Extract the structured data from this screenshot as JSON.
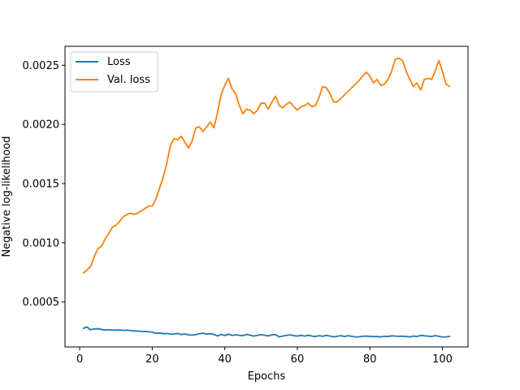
{
  "chart_data": {
    "type": "line",
    "title": "",
    "xlabel": "Epochs",
    "ylabel": "Negative log-likelihood",
    "xlim": [
      -4.05,
      107.05
    ],
    "ylim": [
      0.00012,
      0.00266
    ],
    "xticks": [
      0,
      20,
      40,
      60,
      80,
      100
    ],
    "xtick_labels": [
      "0",
      "20",
      "40",
      "60",
      "80",
      "100"
    ],
    "yticks": [
      0.0005,
      0.001,
      0.0015,
      0.002,
      0.0025
    ],
    "ytick_labels": [
      "0.0005",
      "0.0010",
      "0.0015",
      "0.0020",
      "0.0025"
    ],
    "grid": false,
    "legend": "top-left",
    "series": [
      {
        "name": "Loss",
        "color": "#1f77b4",
        "x": [
          1,
          2,
          3,
          4,
          5,
          6,
          7,
          8,
          9,
          10,
          11,
          12,
          13,
          14,
          15,
          16,
          17,
          18,
          19,
          20,
          21,
          22,
          23,
          24,
          25,
          26,
          27,
          28,
          29,
          30,
          31,
          32,
          33,
          34,
          35,
          36,
          37,
          38,
          39,
          40,
          41,
          42,
          43,
          44,
          45,
          46,
          47,
          48,
          49,
          50,
          51,
          52,
          53,
          54,
          55,
          56,
          57,
          58,
          59,
          60,
          61,
          62,
          63,
          64,
          65,
          66,
          67,
          68,
          69,
          70,
          71,
          72,
          73,
          74,
          75,
          76,
          77,
          78,
          79,
          80,
          81,
          82,
          83,
          84,
          85,
          86,
          87,
          88,
          89,
          90,
          91,
          92,
          93,
          94,
          95,
          96,
          97,
          98,
          99,
          100,
          101,
          102
        ],
        "y": [
          0.000277,
          0.000288,
          0.000265,
          0.000272,
          0.000274,
          0.000268,
          0.000262,
          0.000266,
          0.000263,
          0.000262,
          0.000265,
          0.00026,
          0.000262,
          0.000258,
          0.000255,
          0.000254,
          0.000252,
          0.000251,
          0.000248,
          0.000245,
          0.000235,
          0.000238,
          0.000232,
          0.000234,
          0.000228,
          0.00023,
          0.000234,
          0.000225,
          0.00023,
          0.000222,
          0.00022,
          0.000224,
          0.000232,
          0.000236,
          0.000228,
          0.000232,
          0.000226,
          0.000212,
          0.000226,
          0.000216,
          0.000228,
          0.000218,
          0.000222,
          0.000218,
          0.000215,
          0.000226,
          0.000219,
          0.000212,
          0.000218,
          0.000225,
          0.000218,
          0.000213,
          0.000222,
          0.000225,
          0.000205,
          0.000212,
          0.000218,
          0.000222,
          0.000215,
          0.000212,
          0.000218,
          0.000212,
          0.000219,
          0.000212,
          0.000208,
          0.000215,
          0.00021,
          0.000218,
          0.000212,
          0.000205,
          0.00021,
          0.000215,
          0.000208,
          0.000215,
          0.000209,
          0.000205,
          0.000205,
          0.00021,
          0.000212,
          0.000209,
          0.000208,
          0.000207,
          0.000205,
          0.00021,
          0.000208,
          0.000214,
          0.000212,
          0.00021,
          0.000211,
          0.000208,
          0.000205,
          0.000212,
          0.000208,
          0.000218,
          0.000214,
          0.000212,
          0.000208,
          0.000215,
          0.00021,
          0.000204,
          0.000205,
          0.000209
        ]
      },
      {
        "name": "Val. loss",
        "color": "#ff7f0e",
        "x": [
          1,
          2,
          3,
          4,
          5,
          6,
          7,
          8,
          9,
          10,
          11,
          12,
          13,
          14,
          15,
          16,
          17,
          18,
          19,
          20,
          21,
          22,
          23,
          24,
          25,
          26,
          27,
          28,
          29,
          30,
          31,
          32,
          33,
          34,
          35,
          36,
          37,
          38,
          39,
          40,
          41,
          42,
          43,
          44,
          45,
          46,
          47,
          48,
          49,
          50,
          51,
          52,
          53,
          54,
          55,
          56,
          57,
          58,
          59,
          60,
          61,
          62,
          63,
          64,
          65,
          66,
          67,
          68,
          69,
          70,
          71,
          72,
          73,
          74,
          75,
          76,
          77,
          78,
          79,
          80,
          81,
          82,
          83,
          84,
          85,
          86,
          87,
          88,
          89,
          90,
          91,
          92,
          93,
          94,
          95,
          96,
          97,
          98,
          99,
          100,
          101,
          102
        ],
        "y": [
          0.000745,
          0.00077,
          0.0008,
          0.00088,
          0.00095,
          0.00097,
          0.00103,
          0.00108,
          0.00113,
          0.00115,
          0.00118,
          0.00122,
          0.00124,
          0.00125,
          0.00124,
          0.00125,
          0.00127,
          0.00129,
          0.00131,
          0.00131,
          0.00137,
          0.00146,
          0.00155,
          0.00167,
          0.00182,
          0.00188,
          0.00187,
          0.0019,
          0.00185,
          0.0018,
          0.00186,
          0.00197,
          0.00198,
          0.00194,
          0.00198,
          0.00202,
          0.00197,
          0.0021,
          0.00225,
          0.00233,
          0.00239,
          0.0023,
          0.00226,
          0.00216,
          0.00209,
          0.00213,
          0.00212,
          0.00209,
          0.00212,
          0.00218,
          0.00218,
          0.00213,
          0.00219,
          0.00224,
          0.00216,
          0.00214,
          0.00217,
          0.00219,
          0.00215,
          0.00212,
          0.00215,
          0.00216,
          0.00218,
          0.00215,
          0.00216,
          0.00223,
          0.00232,
          0.00231,
          0.00226,
          0.00219,
          0.00219,
          0.00222,
          0.00225,
          0.00228,
          0.00231,
          0.00234,
          0.00237,
          0.00241,
          0.00244,
          0.00241,
          0.00235,
          0.00238,
          0.00233,
          0.00234,
          0.00238,
          0.00245,
          0.00255,
          0.00256,
          0.00254,
          0.00245,
          0.00238,
          0.00232,
          0.00235,
          0.00229,
          0.00238,
          0.00239,
          0.00238,
          0.00245,
          0.00254,
          0.00245,
          0.00234,
          0.00232
        ]
      }
    ]
  }
}
